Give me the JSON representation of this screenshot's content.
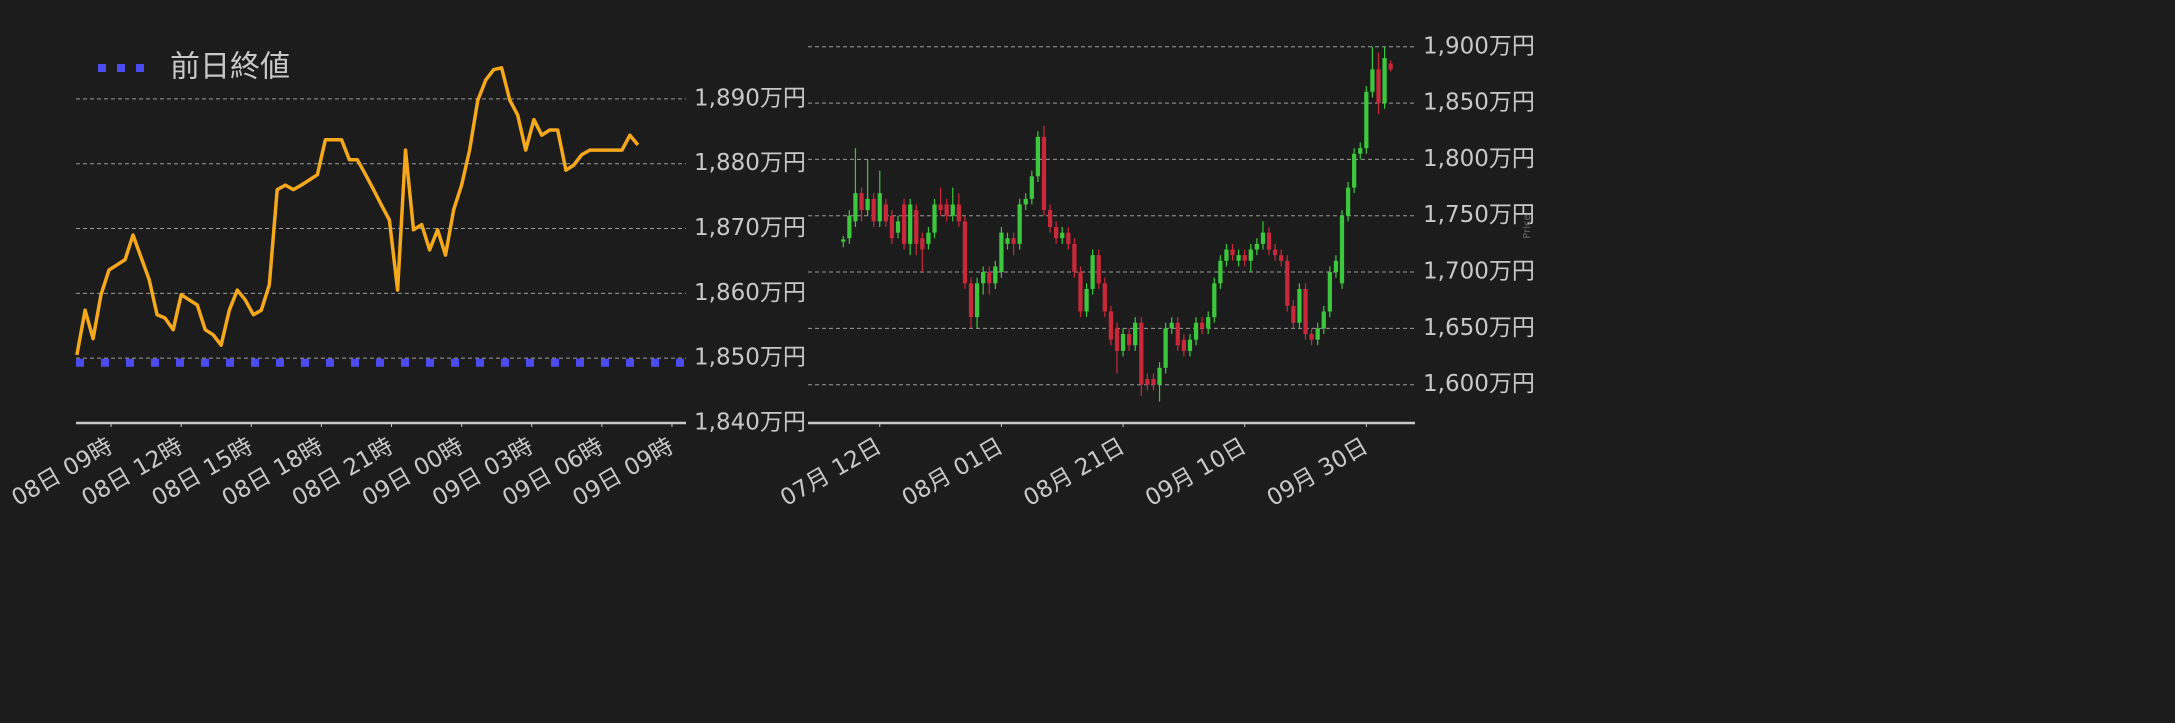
{
  "chart_data": [
    {
      "type": "line",
      "legend": "top-left",
      "grid": true,
      "color": "#f5a81c",
      "xlim": [
        -1.5,
        24.6
      ],
      "xticks": [
        {
          "value": 0,
          "label": "08日 09時"
        },
        {
          "value": 3,
          "label": "08日 12時"
        },
        {
          "value": 6,
          "label": "08日 15時"
        },
        {
          "value": 9,
          "label": "08日 18時"
        },
        {
          "value": 12,
          "label": "08日 21時"
        },
        {
          "value": 15,
          "label": "09日 00時"
        },
        {
          "value": 18,
          "label": "09日 03時"
        },
        {
          "value": 21,
          "label": "09日 06時"
        },
        {
          "value": 24,
          "label": "09日 09時"
        }
      ],
      "ylim": [
        1840,
        1896
      ],
      "yticks": [
        {
          "value": 1840,
          "label": "1,840万円"
        },
        {
          "value": 1850,
          "label": "1,850万円"
        },
        {
          "value": 1860,
          "label": "1,860万円"
        },
        {
          "value": 1870,
          "label": "1,870万円"
        },
        {
          "value": 1880,
          "label": "1,880万円"
        },
        {
          "value": 1890,
          "label": "1,890万円"
        }
      ],
      "reference_lines": [
        {
          "name": "前日終値",
          "value": 1849.3,
          "color": "#4b4bf0",
          "style": "dotted"
        }
      ],
      "x": [
        -1.46,
        -1.11,
        -0.77,
        -0.43,
        -0.09,
        0.26,
        0.6,
        0.94,
        1.29,
        1.63,
        1.97,
        2.31,
        2.66,
        3.0,
        3.34,
        3.69,
        4.03,
        4.37,
        4.71,
        5.06,
        5.4,
        5.74,
        6.09,
        6.43,
        6.77,
        7.11,
        7.46,
        7.8,
        8.14,
        8.49,
        8.83,
        9.17,
        9.51,
        9.86,
        10.2,
        10.54,
        10.89,
        11.23,
        11.57,
        11.91,
        12.26,
        12.6,
        12.94,
        13.29,
        13.63,
        13.97,
        14.31,
        14.66,
        15.0,
        15.34,
        15.69,
        16.03,
        16.37,
        16.71,
        17.06,
        17.4,
        17.74,
        18.09,
        18.43,
        18.77,
        19.11,
        19.46,
        19.8,
        20.14,
        20.49,
        20.83,
        21.17,
        21.51,
        21.86,
        22.2,
        22.54
      ],
      "values": [
        1850.5,
        1857.4,
        1853.0,
        1859.8,
        1863.6,
        1864.4,
        1865.2,
        1869.0,
        1865.5,
        1862.1,
        1856.7,
        1856.2,
        1854.4,
        1859.8,
        1859.0,
        1858.2,
        1854.4,
        1853.6,
        1852.0,
        1857.4,
        1860.5,
        1859.0,
        1856.7,
        1857.4,
        1861.3,
        1876.0,
        1876.7,
        1876.0,
        1876.7,
        1877.5,
        1878.3,
        1883.7,
        1883.7,
        1883.7,
        1880.6,
        1880.6,
        1878.3,
        1876.0,
        1873.6,
        1871.3,
        1860.5,
        1882.1,
        1869.8,
        1870.6,
        1866.7,
        1869.8,
        1865.9,
        1872.9,
        1876.7,
        1882.1,
        1889.8,
        1892.9,
        1894.5,
        1894.8,
        1889.8,
        1887.5,
        1882.1,
        1886.8,
        1884.4,
        1885.2,
        1885.2,
        1879.0,
        1879.8,
        1881.4,
        1882.1,
        1882.1,
        1882.1,
        1882.1,
        1882.1,
        1884.4,
        1882.9
      ]
    },
    {
      "type": "candlestick",
      "grid": true,
      "ylabel": "Price",
      "up_color": "#3cc83c",
      "down_color": "#c8283a",
      "xlim": [
        -11.8,
        88
      ],
      "xticks": [
        {
          "value": 0,
          "label": "07月 12日"
        },
        {
          "value": 20,
          "label": "08月 01日"
        },
        {
          "value": 40,
          "label": "08月 21日"
        },
        {
          "value": 60,
          "label": "09月 10日"
        },
        {
          "value": 80,
          "label": "09月 30日"
        }
      ],
      "ylim": [
        1566,
        1906
      ],
      "yticks": [
        {
          "value": 1600,
          "label": "1,600万円"
        },
        {
          "value": 1650,
          "label": "1,650万円"
        },
        {
          "value": 1700,
          "label": "1,700万円"
        },
        {
          "value": 1750,
          "label": "1,750万円"
        },
        {
          "value": 1800,
          "label": "1,800万円"
        },
        {
          "value": 1850,
          "label": "1,850万円"
        },
        {
          "value": 1900,
          "label": "1,900万円"
        }
      ],
      "x": [
        -6,
        -5,
        -4,
        -3,
        -2,
        -1,
        0,
        1,
        2,
        3,
        4,
        5,
        6,
        7,
        8,
        9,
        10,
        11,
        12,
        13,
        14,
        15,
        16,
        17,
        18,
        19,
        20,
        21,
        22,
        23,
        24,
        25,
        26,
        27,
        28,
        29,
        30,
        31,
        32,
        33,
        34,
        35,
        36,
        37,
        38,
        39,
        40,
        41,
        42,
        43,
        44,
        45,
        46,
        47,
        48,
        49,
        50,
        51,
        52,
        53,
        54,
        55,
        56,
        57,
        58,
        59,
        60,
        61,
        62,
        63,
        64,
        65,
        66,
        67,
        68,
        69,
        70,
        71,
        72,
        73,
        74,
        75,
        76,
        77,
        78,
        79,
        80,
        81,
        82,
        83,
        84
      ],
      "open": [
        1727,
        1730,
        1745,
        1770,
        1755,
        1765,
        1745,
        1760,
        1750,
        1735,
        1760,
        1725,
        1755,
        1730,
        1725,
        1735,
        1760,
        1760,
        1750,
        1760,
        1745,
        1690,
        1660,
        1690,
        1700,
        1690,
        1700,
        1725,
        1730,
        1725,
        1760,
        1765,
        1785,
        1820,
        1755,
        1740,
        1730,
        1735,
        1725,
        1700,
        1665,
        1685,
        1715,
        1690,
        1665,
        1650,
        1630,
        1645,
        1635,
        1655,
        1605,
        1605,
        1600,
        1615,
        1650,
        1655,
        1640,
        1630,
        1640,
        1655,
        1650,
        1660,
        1690,
        1710,
        1720,
        1710,
        1715,
        1710,
        1720,
        1725,
        1735,
        1720,
        1715,
        1710,
        1670,
        1655,
        1685,
        1645,
        1640,
        1650,
        1665,
        1700,
        1690,
        1750,
        1775,
        1805,
        1810,
        1860,
        1880,
        1850,
        1885
      ],
      "high": [
        1732,
        1755,
        1810,
        1775,
        1800,
        1770,
        1790,
        1765,
        1755,
        1750,
        1765,
        1765,
        1760,
        1735,
        1740,
        1765,
        1775,
        1765,
        1775,
        1770,
        1750,
        1695,
        1695,
        1705,
        1705,
        1710,
        1740,
        1735,
        1735,
        1765,
        1770,
        1790,
        1825,
        1830,
        1760,
        1745,
        1740,
        1740,
        1730,
        1705,
        1690,
        1720,
        1720,
        1695,
        1670,
        1655,
        1650,
        1650,
        1660,
        1660,
        1610,
        1610,
        1620,
        1655,
        1660,
        1660,
        1645,
        1645,
        1660,
        1660,
        1665,
        1695,
        1715,
        1725,
        1725,
        1720,
        1720,
        1725,
        1730,
        1745,
        1740,
        1725,
        1720,
        1715,
        1675,
        1690,
        1690,
        1650,
        1655,
        1670,
        1705,
        1715,
        1755,
        1780,
        1810,
        1815,
        1865,
        1900,
        1895,
        1900,
        1888
      ],
      "low": [
        1722,
        1725,
        1740,
        1745,
        1750,
        1740,
        1740,
        1740,
        1725,
        1730,
        1720,
        1715,
        1715,
        1700,
        1720,
        1730,
        1750,
        1745,
        1745,
        1740,
        1685,
        1650,
        1650,
        1680,
        1680,
        1685,
        1695,
        1720,
        1715,
        1720,
        1755,
        1760,
        1780,
        1750,
        1735,
        1725,
        1725,
        1720,
        1695,
        1660,
        1660,
        1680,
        1685,
        1660,
        1635,
        1610,
        1625,
        1630,
        1630,
        1590,
        1595,
        1595,
        1585,
        1610,
        1645,
        1630,
        1625,
        1625,
        1635,
        1645,
        1645,
        1655,
        1685,
        1705,
        1710,
        1705,
        1705,
        1700,
        1715,
        1720,
        1715,
        1710,
        1705,
        1665,
        1650,
        1650,
        1640,
        1635,
        1635,
        1645,
        1660,
        1695,
        1685,
        1745,
        1770,
        1800,
        1805,
        1855,
        1840,
        1845,
        1878
      ],
      "close": [
        1729,
        1750,
        1770,
        1755,
        1765,
        1745,
        1770,
        1745,
        1730,
        1745,
        1725,
        1760,
        1725,
        1720,
        1735,
        1760,
        1755,
        1750,
        1760,
        1745,
        1690,
        1660,
        1690,
        1700,
        1690,
        1705,
        1735,
        1730,
        1725,
        1760,
        1765,
        1785,
        1820,
        1755,
        1740,
        1730,
        1735,
        1725,
        1700,
        1665,
        1685,
        1715,
        1690,
        1665,
        1640,
        1630,
        1645,
        1635,
        1655,
        1600,
        1600,
        1600,
        1615,
        1650,
        1655,
        1635,
        1630,
        1640,
        1655,
        1650,
        1660,
        1690,
        1710,
        1720,
        1715,
        1715,
        1710,
        1720,
        1725,
        1735,
        1720,
        1715,
        1710,
        1670,
        1655,
        1685,
        1645,
        1640,
        1650,
        1665,
        1700,
        1710,
        1750,
        1775,
        1805,
        1810,
        1860,
        1880,
        1850,
        1890,
        1880
      ]
    }
  ]
}
